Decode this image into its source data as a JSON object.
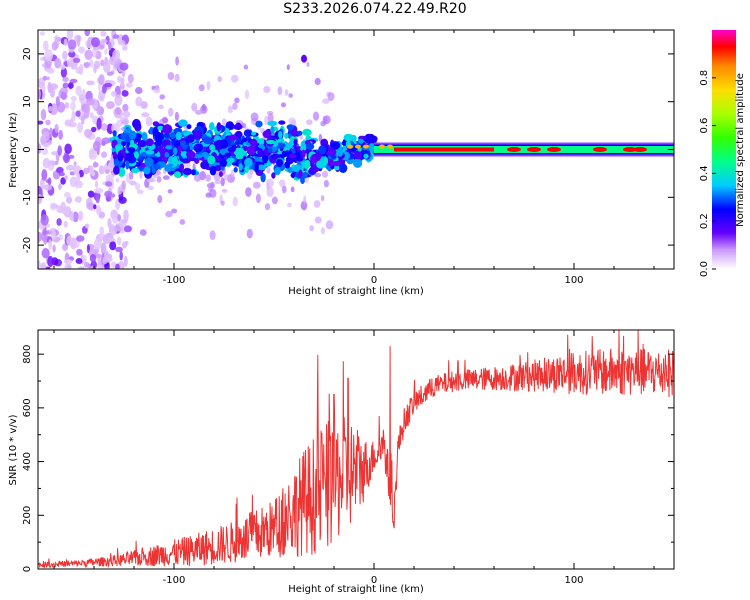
{
  "page": {
    "title": "S233.2026.074.22.49.R20"
  },
  "colors": {
    "snr_line": "#ee3333",
    "axis": "#000000"
  },
  "chart_data": [
    {
      "type": "heatmap",
      "title": "S233.2026.074.22.49.R20",
      "xlabel": "Height of straight line (km)",
      "ylabel": "Frequency (Hz)",
      "xlim": [
        -168,
        150
      ],
      "ylim": [
        -25,
        25
      ],
      "x_ticks": [
        {
          "value": -100,
          "label": "-100"
        },
        {
          "value": 0,
          "label": "0"
        },
        {
          "value": 100,
          "label": "100"
        }
      ],
      "y_ticks": [
        {
          "value": -20,
          "label": "-20"
        },
        {
          "value": -10,
          "label": "-10"
        },
        {
          "value": 0,
          "label": "0"
        },
        {
          "value": 10,
          "label": "10"
        },
        {
          "value": 20,
          "label": "20"
        }
      ],
      "colorbar": {
        "label": "Normalized spectral amplitude",
        "range": [
          0,
          1
        ],
        "ticks": [
          {
            "value": 0.0,
            "label": "0.0"
          },
          {
            "value": 0.2,
            "label": "0.2"
          },
          {
            "value": 0.4,
            "label": "0.4"
          },
          {
            "value": 0.6,
            "label": "0.6"
          },
          {
            "value": 0.8,
            "label": "0.8"
          }
        ]
      },
      "description_regions": [
        {
          "x_range": [
            -168,
            -125
          ],
          "f_range": [
            -25,
            25
          ],
          "amplitude": 0.1,
          "kind": "scattered"
        },
        {
          "x_range": [
            -125,
            -30
          ],
          "f_range": [
            -6,
            6
          ],
          "amplitude": 0.3,
          "kind": "band"
        },
        {
          "x_range": [
            -30,
            0
          ],
          "f_range": [
            -3,
            3
          ],
          "amplitude": 0.35,
          "kind": "band"
        },
        {
          "x_range": [
            0,
            150
          ],
          "f_range": [
            -1,
            1
          ],
          "amplitude": 0.95,
          "kind": "line"
        }
      ]
    },
    {
      "type": "line",
      "xlabel": "Height of straight line (km)",
      "ylabel": "SNR (10 * v/v)",
      "xlim": [
        -168,
        150
      ],
      "ylim": [
        0,
        890
      ],
      "x_ticks": [
        {
          "value": -100,
          "label": "-100"
        },
        {
          "value": 0,
          "label": "0"
        },
        {
          "value": 100,
          "label": "100"
        }
      ],
      "y_ticks": [
        {
          "value": 0,
          "label": "0"
        },
        {
          "value": 200,
          "label": "200"
        },
        {
          "value": 400,
          "label": "400"
        },
        {
          "value": 600,
          "label": "600"
        },
        {
          "value": 800,
          "label": "800"
        }
      ],
      "series": [
        {
          "name": "SNR",
          "trend_x": [
            -168,
            -150,
            -130,
            -110,
            -90,
            -70,
            -50,
            -35,
            -25,
            -15,
            -10,
            -5,
            0,
            5,
            8,
            10,
            12,
            15,
            20,
            30,
            40,
            60,
            80,
            100,
            120,
            150
          ],
          "trend_y": [
            15,
            20,
            30,
            50,
            70,
            100,
            150,
            250,
            300,
            350,
            360,
            370,
            420,
            470,
            300,
            200,
            450,
            550,
            620,
            680,
            700,
            710,
            720,
            730,
            735,
            730
          ],
          "noise_y": [
            10,
            12,
            20,
            40,
            60,
            80,
            110,
            200,
            250,
            220,
            200,
            120,
            60,
            80,
            80,
            60,
            60,
            50,
            45,
            40,
            40,
            45,
            60,
            80,
            90,
            90
          ],
          "spikes": [
            {
              "x": 8,
              "y": 830
            },
            {
              "x": -13,
              "y": 710
            },
            {
              "x": -20,
              "y": 650
            },
            {
              "x": 132,
              "y": 890
            }
          ]
        }
      ]
    }
  ]
}
